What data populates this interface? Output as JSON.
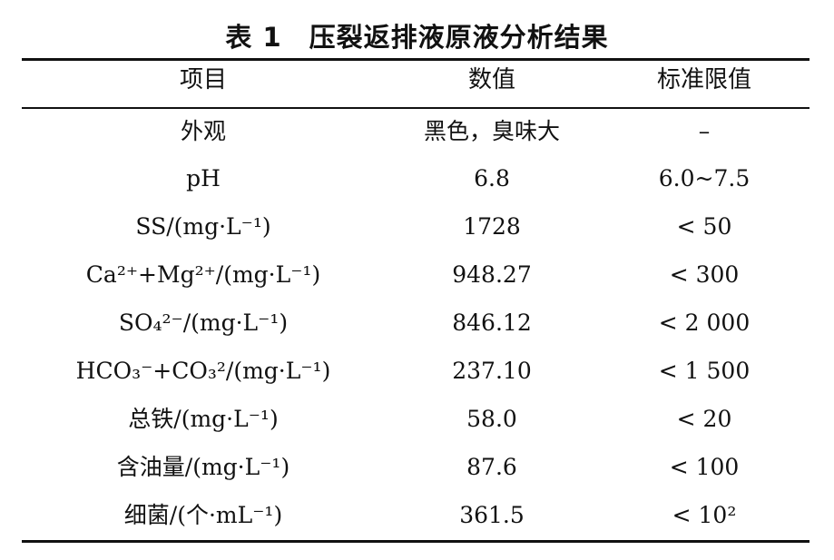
{
  "caption": {
    "number": "表 1",
    "title": "压裂返排液原液分析结果"
  },
  "table": {
    "headers": [
      "项目",
      "数值",
      "标准限值"
    ],
    "rows": [
      {
        "item": "外观",
        "value": "黑色，臭味大",
        "limit": "–"
      },
      {
        "item": "pH",
        "value": "6.8",
        "limit": "6.0~7.5"
      },
      {
        "item": "SS/(mg·L⁻¹)",
        "value": "1728",
        "limit": "< 50"
      },
      {
        "item": "Ca²⁺+Mg²⁺/(mg·L⁻¹)",
        "value": "948.27",
        "limit": "< 300"
      },
      {
        "item": "SO₄²⁻/(mg·L⁻¹)",
        "value": "846.12",
        "limit": "< 2 000"
      },
      {
        "item": "HCO₃⁻+CO₃²/(mg·L⁻¹)",
        "value": "237.10",
        "limit": "< 1 500"
      },
      {
        "item": "总铁/(mg·L⁻¹)",
        "value": "58.0",
        "limit": "< 20"
      },
      {
        "item": "含油量/(mg·L⁻¹)",
        "value": "87.6",
        "limit": "< 100"
      },
      {
        "item": "细菌/(个·mL⁻¹)",
        "value": "361.5",
        "limit": "< 10²"
      }
    ]
  }
}
